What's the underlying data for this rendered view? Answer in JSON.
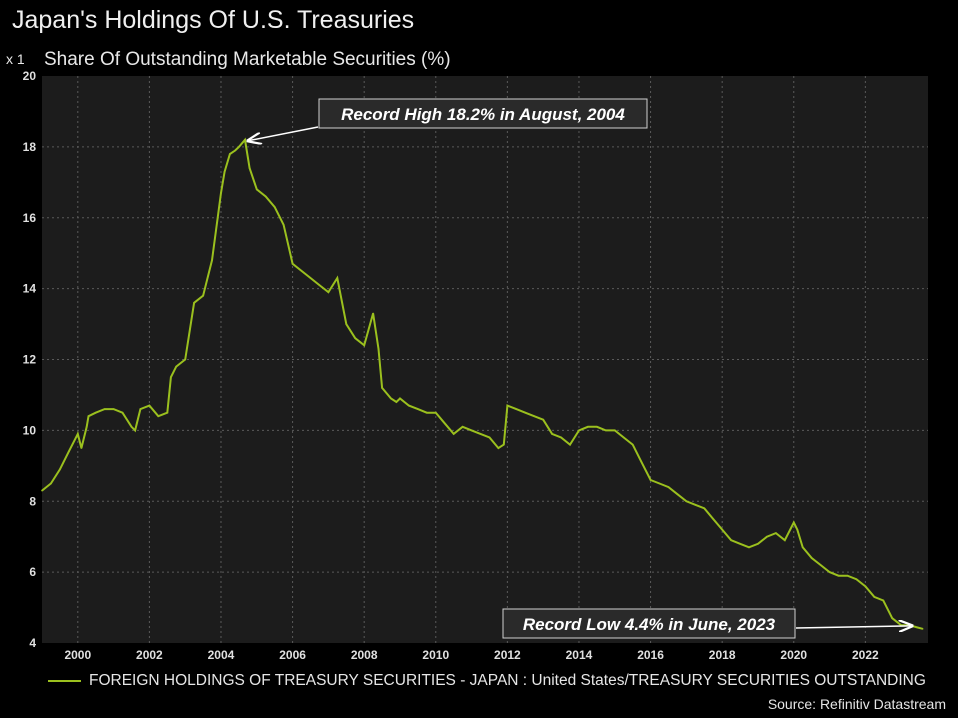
{
  "title": "Japan's Holdings Of U.S. Treasuries",
  "subtitle": "Share Of Outstanding Marketable Securities (%)",
  "scale_label": "x 1",
  "source": "Source: Refinitiv Datastream",
  "colors": {
    "background": "#000000",
    "plot_background": "#1c1c1c",
    "grid": "#5a5a5a",
    "line": "#9bc01e",
    "text": "#e6e6e6"
  },
  "chart_data": {
    "type": "line",
    "xlim": [
      1999,
      2023.75
    ],
    "ylim": [
      4,
      20
    ],
    "x_ticks": [
      "2000",
      "2002",
      "2004",
      "2006",
      "2008",
      "2010",
      "2012",
      "2014",
      "2016",
      "2018",
      "2020",
      "2022"
    ],
    "y_ticks": [
      "4",
      "6",
      "8",
      "10",
      "12",
      "14",
      "16",
      "18",
      "20"
    ],
    "grid": true,
    "legend_position": "bottom",
    "series": [
      {
        "name": "FOREIGN HOLDINGS OF TREASURY SECURITIES - JAPAN : United States/TREASURY SECURITIES OUTSTANDING",
        "x": [
          1999.0,
          1999.25,
          1999.5,
          1999.75,
          2000.0,
          2000.1,
          2000.25,
          2000.3,
          2000.5,
          2000.75,
          2001.0,
          2001.25,
          2001.5,
          2001.6,
          2001.75,
          2002.0,
          2002.25,
          2002.5,
          2002.6,
          2002.75,
          2003.0,
          2003.25,
          2003.5,
          2003.75,
          2004.0,
          2004.1,
          2004.25,
          2004.4,
          2004.5,
          2004.67,
          2004.8,
          2005.0,
          2005.25,
          2005.5,
          2005.75,
          2006.0,
          2006.25,
          2006.5,
          2006.75,
          2007.0,
          2007.25,
          2007.5,
          2007.75,
          2008.0,
          2008.25,
          2008.4,
          2008.5,
          2008.75,
          2008.9,
          2009.0,
          2009.25,
          2009.5,
          2009.75,
          2010.0,
          2010.25,
          2010.5,
          2010.75,
          2011.0,
          2011.25,
          2011.5,
          2011.75,
          2011.9,
          2012.0,
          2012.25,
          2012.5,
          2012.75,
          2013.0,
          2013.25,
          2013.5,
          2013.75,
          2014.0,
          2014.25,
          2014.5,
          2014.75,
          2015.0,
          2015.25,
          2015.5,
          2015.75,
          2016.0,
          2016.25,
          2016.5,
          2016.75,
          2017.0,
          2017.25,
          2017.5,
          2017.75,
          2018.0,
          2018.25,
          2018.5,
          2018.75,
          2019.0,
          2019.25,
          2019.5,
          2019.75,
          2020.0,
          2020.1,
          2020.25,
          2020.5,
          2020.75,
          2021.0,
          2021.25,
          2021.5,
          2021.75,
          2022.0,
          2022.25,
          2022.5,
          2022.75,
          2023.0,
          2023.25,
          2023.42,
          2023.6
        ],
        "values": [
          8.3,
          8.5,
          8.9,
          9.4,
          9.9,
          9.5,
          10.1,
          10.4,
          10.5,
          10.6,
          10.6,
          10.5,
          10.1,
          10.0,
          10.6,
          10.7,
          10.4,
          10.5,
          11.5,
          11.8,
          12.0,
          13.6,
          13.8,
          14.8,
          16.7,
          17.3,
          17.8,
          17.9,
          18.0,
          18.2,
          17.4,
          16.8,
          16.6,
          16.3,
          15.8,
          14.7,
          14.5,
          14.3,
          14.1,
          13.9,
          14.3,
          13.0,
          12.6,
          12.4,
          13.3,
          12.3,
          11.2,
          10.9,
          10.8,
          10.9,
          10.7,
          10.6,
          10.5,
          10.5,
          10.2,
          9.9,
          10.1,
          10.0,
          9.9,
          9.8,
          9.5,
          9.6,
          10.7,
          10.6,
          10.5,
          10.4,
          10.3,
          9.9,
          9.8,
          9.6,
          10.0,
          10.1,
          10.1,
          10.0,
          10.0,
          9.8,
          9.6,
          9.1,
          8.6,
          8.5,
          8.4,
          8.2,
          8.0,
          7.9,
          7.8,
          7.5,
          7.2,
          6.9,
          6.8,
          6.7,
          6.8,
          7.0,
          7.1,
          6.9,
          7.4,
          7.2,
          6.7,
          6.4,
          6.2,
          6.0,
          5.9,
          5.9,
          5.8,
          5.6,
          5.3,
          5.2,
          4.7,
          4.5,
          4.5,
          4.45,
          4.4
        ]
      }
    ],
    "annotations": [
      {
        "text": "Record High 18.2% in August, 2004",
        "x": 2004.67,
        "y": 18.2
      },
      {
        "text": "Record Low 4.4% in June, 2023",
        "x": 2023.42,
        "y": 4.4
      }
    ]
  }
}
